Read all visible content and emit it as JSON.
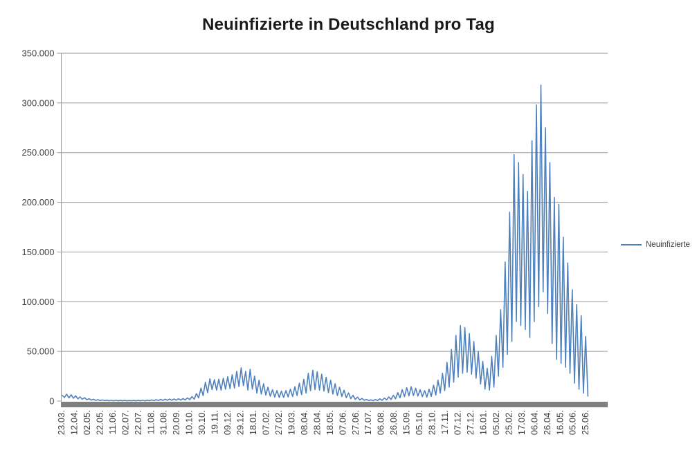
{
  "title": "Neuinfizierte in Deutschland pro Tag",
  "legend": {
    "label": "Neuinfizierte"
  },
  "colors": {
    "series_line": "#4F81BD",
    "gridline": "#9a9a9a",
    "axis_line": "#9a9a9a",
    "x_axis_bar": "#808080",
    "text": "#404040",
    "title_text": "#1a1a1a",
    "background": "#ffffff"
  },
  "chart_data": {
    "type": "line",
    "title": "Neuinfizierte in Deutschland pro Tag",
    "series": [
      {
        "name": "Neuinfizierte"
      }
    ],
    "xlabel": "",
    "ylabel": "",
    "ylim": [
      0,
      350000
    ],
    "grid": true,
    "legend_position": "right",
    "y_tick_values": [
      0,
      50000,
      100000,
      150000,
      200000,
      250000,
      300000,
      350000
    ],
    "y_tick_labels": [
      "0",
      "50.000",
      "100.000",
      "150.000",
      "200.000",
      "250.000",
      "300.000",
      "350.000"
    ],
    "x_tick_interval_days": 20,
    "x_tick_labels": [
      "23.03.",
      "12.04.",
      "02.05.",
      "22.05.",
      "11.06.",
      "02.07.",
      "22.07.",
      "11.08.",
      "31.08.",
      "20.09.",
      "10.10.",
      "30.10.",
      "19.11.",
      "09.12.",
      "29.12.",
      "18.01.",
      "07.02.",
      "27.02.",
      "19.03.",
      "08.04.",
      "28.04.",
      "18.05.",
      "07.06.",
      "27.06.",
      "17.07.",
      "06.08.",
      "26.08.",
      "15.09.",
      "05.10.",
      "28.10.",
      "17.11.",
      "07.12.",
      "27.12.",
      "16.01.",
      "05.02.",
      "25.02.",
      "17.03.",
      "06.04.",
      "26.04.",
      "16.05.",
      "05.06.",
      "25.06."
    ],
    "weekly_envelope": {
      "description": "Daily new infections oscillate weekly; values read from chart as weekly [peak, low] pairs, one pair per week starting at the first x label (23.03.). Unit: persons per day.",
      "unit": "Neuinfizierte pro Tag",
      "weeks": [
        [
          5800,
          3600
        ],
        [
          6900,
          3200
        ],
        [
          6300,
          2800
        ],
        [
          5300,
          2200
        ],
        [
          4200,
          1800
        ],
        [
          3400,
          1400
        ],
        [
          2400,
          1000
        ],
        [
          1800,
          700
        ],
        [
          1400,
          550
        ],
        [
          1100,
          450
        ],
        [
          900,
          350
        ],
        [
          800,
          350
        ],
        [
          750,
          300
        ],
        [
          650,
          300
        ],
        [
          600,
          250
        ],
        [
          550,
          250
        ],
        [
          600,
          250
        ],
        [
          650,
          300
        ],
        [
          750,
          300
        ],
        [
          900,
          350
        ],
        [
          1100,
          450
        ],
        [
          1400,
          600
        ],
        [
          1700,
          700
        ],
        [
          1900,
          800
        ],
        [
          2000,
          850
        ],
        [
          2100,
          900
        ],
        [
          2300,
          1000
        ],
        [
          2600,
          1100
        ],
        [
          3200,
          1400
        ],
        [
          4500,
          1900
        ],
        [
          7500,
          3100
        ],
        [
          13000,
          5500
        ],
        [
          19000,
          8500
        ],
        [
          22500,
          11500
        ],
        [
          21500,
          11000
        ],
        [
          22000,
          11000
        ],
        [
          23000,
          12000
        ],
        [
          24500,
          12500
        ],
        [
          26500,
          13000
        ],
        [
          30000,
          14500
        ],
        [
          33500,
          15500
        ],
        [
          30000,
          11000
        ],
        [
          32000,
          12000
        ],
        [
          25000,
          8000
        ],
        [
          21000,
          7000
        ],
        [
          17500,
          6000
        ],
        [
          14000,
          4800
        ],
        [
          11500,
          4000
        ],
        [
          10500,
          3600
        ],
        [
          10000,
          3600
        ],
        [
          10500,
          4200
        ],
        [
          12000,
          4600
        ],
        [
          14500,
          5500
        ],
        [
          18000,
          6500
        ],
        [
          22000,
          8000
        ],
        [
          28000,
          10500
        ],
        [
          31000,
          11500
        ],
        [
          29500,
          11000
        ],
        [
          27000,
          10000
        ],
        [
          24000,
          8500
        ],
        [
          21000,
          7000
        ],
        [
          17500,
          5500
        ],
        [
          14000,
          4500
        ],
        [
          11000,
          3400
        ],
        [
          8200,
          2400
        ],
        [
          5800,
          1700
        ],
        [
          4000,
          1200
        ],
        [
          2600,
          800
        ],
        [
          1700,
          550
        ],
        [
          1200,
          400
        ],
        [
          1600,
          500
        ],
        [
          2200,
          800
        ],
        [
          3000,
          1100
        ],
        [
          4200,
          1600
        ],
        [
          5800,
          2200
        ],
        [
          8500,
          3200
        ],
        [
          11500,
          4400
        ],
        [
          13500,
          5200
        ],
        [
          14500,
          5600
        ],
        [
          13000,
          5000
        ],
        [
          11500,
          4400
        ],
        [
          10500,
          4000
        ],
        [
          12000,
          4600
        ],
        [
          16000,
          6000
        ],
        [
          21000,
          8000
        ],
        [
          28000,
          10500
        ],
        [
          39000,
          14000
        ],
        [
          52000,
          19000
        ],
        [
          66000,
          24000
        ],
        [
          76000,
          28000
        ],
        [
          74000,
          29000
        ],
        [
          68000,
          27000
        ],
        [
          60000,
          23000
        ],
        [
          50000,
          17000
        ],
        [
          40000,
          12000
        ],
        [
          33000,
          11000
        ],
        [
          45000,
          14000
        ],
        [
          66000,
          25000
        ],
        [
          92000,
          34000
        ],
        [
          140000,
          47000
        ],
        [
          190000,
          60000
        ],
        [
          248000,
          80000
        ],
        [
          240000,
          76000
        ],
        [
          228000,
          72000
        ],
        [
          211000,
          64000
        ],
        [
          262000,
          80000
        ],
        [
          298000,
          95000
        ],
        [
          318000,
          110000
        ],
        [
          275000,
          88000
        ],
        [
          240000,
          58000
        ],
        [
          205000,
          42000
        ],
        [
          198000,
          38000
        ],
        [
          165000,
          34000
        ],
        [
          139000,
          28000
        ],
        [
          112000,
          18000
        ],
        [
          97000,
          12000
        ],
        [
          86000,
          8000
        ],
        [
          65000,
          5000
        ]
      ]
    }
  }
}
